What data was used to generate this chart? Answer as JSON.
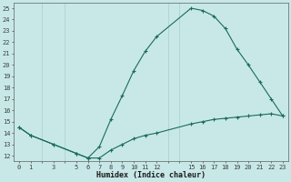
{
  "xlabel": "Humidex (Indice chaleur)",
  "background_color": "#c8e8e8",
  "grid_color": "#a8cece",
  "line_color": "#1a6b5a",
  "upper_x": [
    0,
    1,
    3,
    5,
    6,
    7,
    8,
    9,
    10,
    11,
    12,
    15,
    16,
    17,
    18,
    19,
    20,
    21,
    22,
    23
  ],
  "upper_y": [
    14.5,
    13.8,
    13.0,
    12.2,
    11.8,
    12.8,
    15.2,
    17.3,
    19.5,
    21.2,
    22.5,
    25.0,
    24.8,
    24.3,
    23.2,
    21.4,
    20.0,
    18.5,
    17.0,
    15.5
  ],
  "lower_x": [
    0,
    1,
    3,
    5,
    6,
    7,
    8,
    9,
    10,
    11,
    12,
    15,
    16,
    17,
    18,
    19,
    20,
    21,
    22,
    23
  ],
  "lower_y": [
    14.5,
    13.8,
    13.0,
    12.2,
    11.8,
    11.8,
    12.5,
    13.0,
    13.5,
    13.8,
    14.0,
    14.8,
    15.0,
    15.2,
    15.3,
    15.4,
    15.5,
    15.6,
    15.7,
    15.5
  ],
  "xlim": [
    -0.5,
    23.5
  ],
  "ylim": [
    11.5,
    25.5
  ],
  "x_ticks": [
    0,
    1,
    3,
    5,
    6,
    7,
    8,
    9,
    10,
    11,
    12,
    15,
    16,
    17,
    18,
    19,
    20,
    21,
    22,
    23
  ],
  "yticks": [
    12,
    13,
    14,
    15,
    16,
    17,
    18,
    19,
    20,
    21,
    22,
    23,
    24,
    25
  ],
  "tick_fontsize": 5.0,
  "label_fontsize": 6.0
}
